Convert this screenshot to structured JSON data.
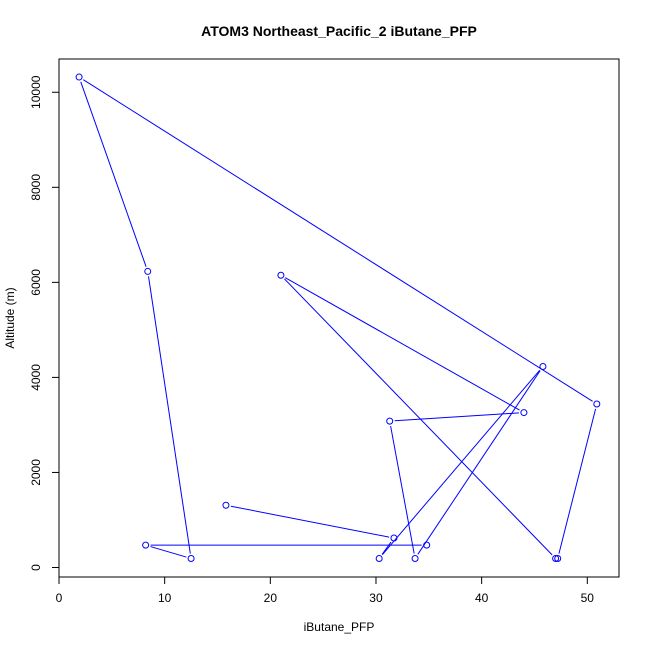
{
  "chart_data": {
    "type": "line",
    "title": "ATOM3 Northeast_Pacific_2 iButane_PFP",
    "xlabel": "iButane_PFP",
    "ylabel": "Altitude (m)",
    "xlim": [
      0,
      53
    ],
    "ylim": [
      -200,
      10700
    ],
    "x_ticks": [
      0,
      10,
      20,
      30,
      40,
      50
    ],
    "y_ticks": [
      0,
      2000,
      4000,
      6000,
      8000,
      10000
    ],
    "grid": false,
    "legend": "none",
    "series_color": "#0000ff",
    "points": [
      {
        "x": 34.8,
        "y": 470
      },
      {
        "x": 8.2,
        "y": 470
      },
      {
        "x": 12.5,
        "y": 190
      },
      {
        "x": 8.4,
        "y": 6230
      },
      {
        "x": 1.9,
        "y": 10320
      },
      {
        "x": 50.9,
        "y": 3440
      },
      {
        "x": 47.2,
        "y": 190
      },
      {
        "x": 47.0,
        "y": 190
      },
      {
        "x": 21.0,
        "y": 6150
      },
      {
        "x": 44.0,
        "y": 3260
      },
      {
        "x": 31.3,
        "y": 3080
      },
      {
        "x": 33.7,
        "y": 190
      },
      {
        "x": 45.8,
        "y": 4230
      },
      {
        "x": 30.3,
        "y": 190
      },
      {
        "x": 31.7,
        "y": 620
      },
      {
        "x": 15.8,
        "y": 1310
      }
    ]
  }
}
